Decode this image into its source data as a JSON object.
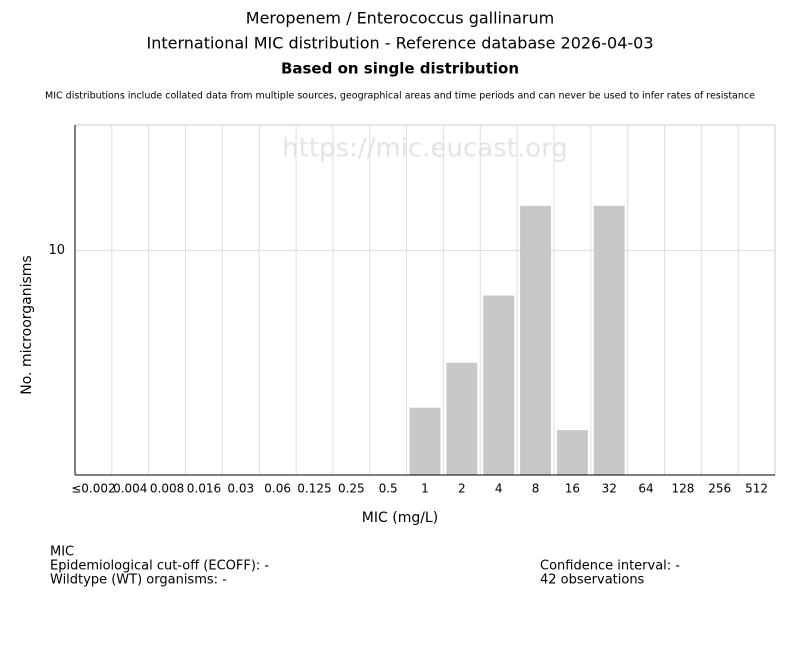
{
  "chart_data": {
    "type": "bar",
    "title": "Meropenem / Enterococcus gallinarum",
    "subtitle": "International MIC distribution - Reference database 2026-04-03",
    "subheading": "Based on single distribution",
    "note": "MIC distributions include collated data from multiple sources, geographical areas and time periods and can never be used to infer rates of resistance",
    "watermark": "https://mic.eucast.org",
    "xlabel": "MIC (mg/L)",
    "ylabel": "No. microorganisms",
    "categories": [
      "≤0.002",
      "0.004",
      "0.008",
      "0.016",
      "0.03",
      "0.06",
      "0.125",
      "0.25",
      "0.5",
      "1",
      "2",
      "4",
      "8",
      "16",
      "32",
      "64",
      "128",
      "256",
      "512"
    ],
    "values": [
      0,
      0,
      0,
      0,
      0,
      0,
      0,
      0,
      0,
      3,
      5,
      8,
      12,
      2,
      12,
      0,
      0,
      0,
      0
    ],
    "color": "#c8c8c8",
    "ylim": [
      0,
      15.6
    ],
    "yticks": [
      10
    ],
    "grid": true
  },
  "footer": {
    "left": [
      "MIC",
      "Epidemiological cut-off (ECOFF): -",
      "Wildtype (WT) organisms:  -"
    ],
    "right": [
      "Confidence interval: -",
      "42 observations"
    ]
  }
}
